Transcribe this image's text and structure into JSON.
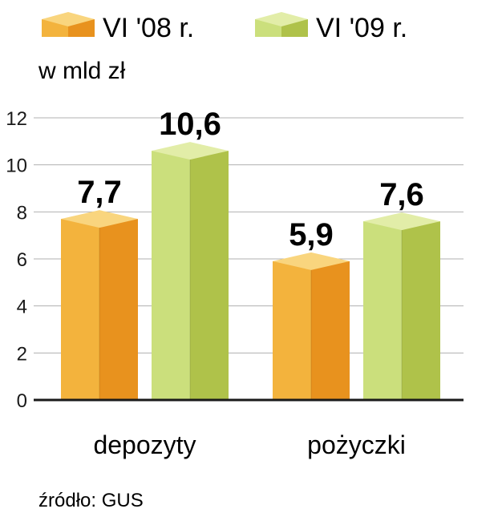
{
  "chart_data": {
    "type": "bar",
    "unit_label": "w mld zł",
    "categories": [
      "depozyty",
      "pożyczki"
    ],
    "series": [
      {
        "name": "VI '08 r.",
        "values": [
          7.7,
          5.9
        ],
        "value_labels": [
          "7,7",
          "5,9"
        ]
      },
      {
        "name": "VI '09 r.",
        "values": [
          10.6,
          7.6
        ],
        "value_labels": [
          "10,6",
          "7,6"
        ]
      }
    ],
    "ylim": [
      0,
      12
    ],
    "yticks": [
      "0",
      "2",
      "4",
      "6",
      "8",
      "10",
      "12"
    ],
    "grid": true,
    "legend_placement": "top-left",
    "source": "źródło: GUS"
  },
  "colors": {
    "series_1": {
      "front": "#F3B33D",
      "side": "#E8921E",
      "top": "#F9D57E"
    },
    "series_2": {
      "front": "#CBDF7C",
      "side": "#AFC24A",
      "top": "#E2EDA8"
    },
    "grid": "#b0b0b0",
    "axis": "#1a1a1a"
  }
}
